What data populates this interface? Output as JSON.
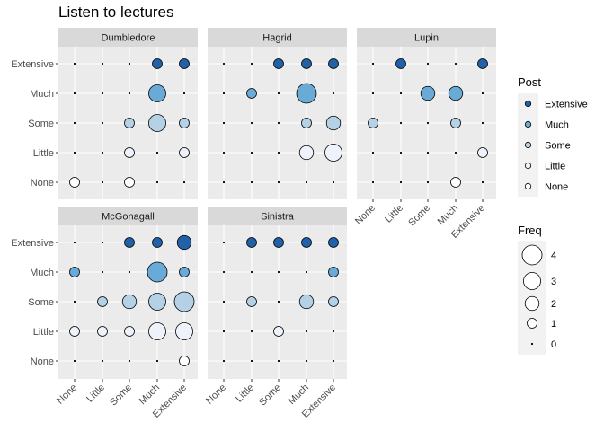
{
  "chart_data": {
    "type": "scatter",
    "title": "Listen to lectures",
    "levels": [
      "None",
      "Little",
      "Some",
      "Much",
      "Extensive"
    ],
    "x_ticks": [
      "None",
      "Little",
      "Some",
      "Much",
      "Extensive"
    ],
    "y_ticks": [
      "None",
      "Little",
      "Some",
      "Much",
      "Extensive"
    ],
    "facets": [
      {
        "name": "Dumbledore",
        "counts": [
          [
            1,
            0,
            1,
            0,
            0
          ],
          [
            0,
            0,
            1,
            0,
            1
          ],
          [
            0,
            0,
            1,
            3,
            1
          ],
          [
            0,
            0,
            0,
            3,
            0
          ],
          [
            0,
            0,
            0,
            1,
            1
          ]
        ]
      },
      {
        "name": "Hagrid",
        "counts": [
          [
            0,
            0,
            0,
            0,
            0
          ],
          [
            0,
            0,
            0,
            2,
            3
          ],
          [
            0,
            0,
            0,
            1,
            2
          ],
          [
            0,
            1,
            0,
            4,
            0
          ],
          [
            0,
            0,
            1,
            1,
            1
          ]
        ]
      },
      {
        "name": "Lupin",
        "counts": [
          [
            0,
            0,
            0,
            1,
            0
          ],
          [
            0,
            0,
            0,
            0,
            1
          ],
          [
            1,
            0,
            0,
            1,
            0
          ],
          [
            0,
            0,
            2,
            2,
            0
          ],
          [
            0,
            1,
            0,
            0,
            1
          ]
        ]
      },
      {
        "name": "McGonagall",
        "counts": [
          [
            0,
            0,
            0,
            0,
            1
          ],
          [
            1,
            1,
            1,
            3,
            3
          ],
          [
            0,
            1,
            2,
            3,
            4
          ],
          [
            1,
            0,
            0,
            4,
            1
          ],
          [
            0,
            0,
            1,
            1,
            2
          ]
        ]
      },
      {
        "name": "Sinistra",
        "counts": [
          [
            0,
            0,
            0,
            0,
            0
          ],
          [
            0,
            0,
            1,
            0,
            0
          ],
          [
            0,
            1,
            0,
            2,
            1
          ],
          [
            0,
            0,
            0,
            0,
            1
          ],
          [
            0,
            1,
            1,
            1,
            1
          ]
        ]
      }
    ],
    "fill_legend": {
      "title": "Post",
      "entries": [
        "Extensive",
        "Much",
        "Some",
        "Little",
        "None"
      ],
      "colors": {
        "None": "#ffffff",
        "Little": "#eef3fb",
        "Some": "#b4d1e6",
        "Much": "#6aaad6",
        "Extensive": "#2161a8"
      }
    },
    "size_legend": {
      "title": "Freq",
      "values": [
        4,
        3,
        2,
        1,
        0
      ]
    }
  }
}
